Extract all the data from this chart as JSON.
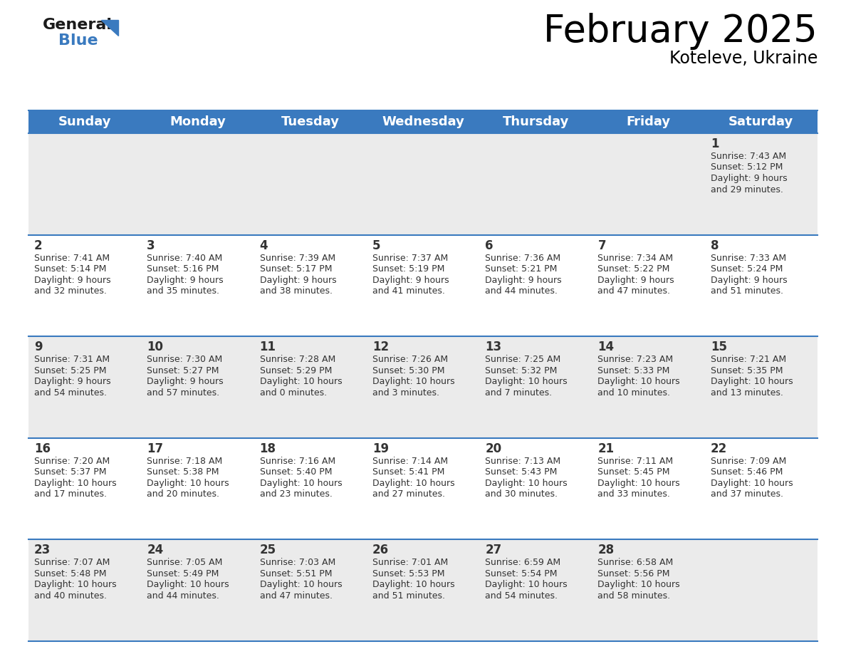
{
  "title": "February 2025",
  "subtitle": "Koteleve, Ukraine",
  "header_color": "#3a7abf",
  "header_text_color": "#ffffff",
  "bg_color_odd": "#ebebeb",
  "bg_color_even": "#ffffff",
  "text_color": "#333333",
  "separator_color": "#3a7abf",
  "days_of_week": [
    "Sunday",
    "Monday",
    "Tuesday",
    "Wednesday",
    "Thursday",
    "Friday",
    "Saturday"
  ],
  "weeks": [
    [
      {
        "day": null,
        "sunrise": null,
        "sunset": null,
        "daylight": null
      },
      {
        "day": null,
        "sunrise": null,
        "sunset": null,
        "daylight": null
      },
      {
        "day": null,
        "sunrise": null,
        "sunset": null,
        "daylight": null
      },
      {
        "day": null,
        "sunrise": null,
        "sunset": null,
        "daylight": null
      },
      {
        "day": null,
        "sunrise": null,
        "sunset": null,
        "daylight": null
      },
      {
        "day": null,
        "sunrise": null,
        "sunset": null,
        "daylight": null
      },
      {
        "day": 1,
        "sunrise": "7:43 AM",
        "sunset": "5:12 PM",
        "daylight": "9 hours\nand 29 minutes."
      }
    ],
    [
      {
        "day": 2,
        "sunrise": "7:41 AM",
        "sunset": "5:14 PM",
        "daylight": "9 hours\nand 32 minutes."
      },
      {
        "day": 3,
        "sunrise": "7:40 AM",
        "sunset": "5:16 PM",
        "daylight": "9 hours\nand 35 minutes."
      },
      {
        "day": 4,
        "sunrise": "7:39 AM",
        "sunset": "5:17 PM",
        "daylight": "9 hours\nand 38 minutes."
      },
      {
        "day": 5,
        "sunrise": "7:37 AM",
        "sunset": "5:19 PM",
        "daylight": "9 hours\nand 41 minutes."
      },
      {
        "day": 6,
        "sunrise": "7:36 AM",
        "sunset": "5:21 PM",
        "daylight": "9 hours\nand 44 minutes."
      },
      {
        "day": 7,
        "sunrise": "7:34 AM",
        "sunset": "5:22 PM",
        "daylight": "9 hours\nand 47 minutes."
      },
      {
        "day": 8,
        "sunrise": "7:33 AM",
        "sunset": "5:24 PM",
        "daylight": "9 hours\nand 51 minutes."
      }
    ],
    [
      {
        "day": 9,
        "sunrise": "7:31 AM",
        "sunset": "5:25 PM",
        "daylight": "9 hours\nand 54 minutes."
      },
      {
        "day": 10,
        "sunrise": "7:30 AM",
        "sunset": "5:27 PM",
        "daylight": "9 hours\nand 57 minutes."
      },
      {
        "day": 11,
        "sunrise": "7:28 AM",
        "sunset": "5:29 PM",
        "daylight": "10 hours\nand 0 minutes."
      },
      {
        "day": 12,
        "sunrise": "7:26 AM",
        "sunset": "5:30 PM",
        "daylight": "10 hours\nand 3 minutes."
      },
      {
        "day": 13,
        "sunrise": "7:25 AM",
        "sunset": "5:32 PM",
        "daylight": "10 hours\nand 7 minutes."
      },
      {
        "day": 14,
        "sunrise": "7:23 AM",
        "sunset": "5:33 PM",
        "daylight": "10 hours\nand 10 minutes."
      },
      {
        "day": 15,
        "sunrise": "7:21 AM",
        "sunset": "5:35 PM",
        "daylight": "10 hours\nand 13 minutes."
      }
    ],
    [
      {
        "day": 16,
        "sunrise": "7:20 AM",
        "sunset": "5:37 PM",
        "daylight": "10 hours\nand 17 minutes."
      },
      {
        "day": 17,
        "sunrise": "7:18 AM",
        "sunset": "5:38 PM",
        "daylight": "10 hours\nand 20 minutes."
      },
      {
        "day": 18,
        "sunrise": "7:16 AM",
        "sunset": "5:40 PM",
        "daylight": "10 hours\nand 23 minutes."
      },
      {
        "day": 19,
        "sunrise": "7:14 AM",
        "sunset": "5:41 PM",
        "daylight": "10 hours\nand 27 minutes."
      },
      {
        "day": 20,
        "sunrise": "7:13 AM",
        "sunset": "5:43 PM",
        "daylight": "10 hours\nand 30 minutes."
      },
      {
        "day": 21,
        "sunrise": "7:11 AM",
        "sunset": "5:45 PM",
        "daylight": "10 hours\nand 33 minutes."
      },
      {
        "day": 22,
        "sunrise": "7:09 AM",
        "sunset": "5:46 PM",
        "daylight": "10 hours\nand 37 minutes."
      }
    ],
    [
      {
        "day": 23,
        "sunrise": "7:07 AM",
        "sunset": "5:48 PM",
        "daylight": "10 hours\nand 40 minutes."
      },
      {
        "day": 24,
        "sunrise": "7:05 AM",
        "sunset": "5:49 PM",
        "daylight": "10 hours\nand 44 minutes."
      },
      {
        "day": 25,
        "sunrise": "7:03 AM",
        "sunset": "5:51 PM",
        "daylight": "10 hours\nand 47 minutes."
      },
      {
        "day": 26,
        "sunrise": "7:01 AM",
        "sunset": "5:53 PM",
        "daylight": "10 hours\nand 51 minutes."
      },
      {
        "day": 27,
        "sunrise": "6:59 AM",
        "sunset": "5:54 PM",
        "daylight": "10 hours\nand 54 minutes."
      },
      {
        "day": 28,
        "sunrise": "6:58 AM",
        "sunset": "5:56 PM",
        "daylight": "10 hours\nand 58 minutes."
      },
      {
        "day": null,
        "sunrise": null,
        "sunset": null,
        "daylight": null
      }
    ]
  ]
}
